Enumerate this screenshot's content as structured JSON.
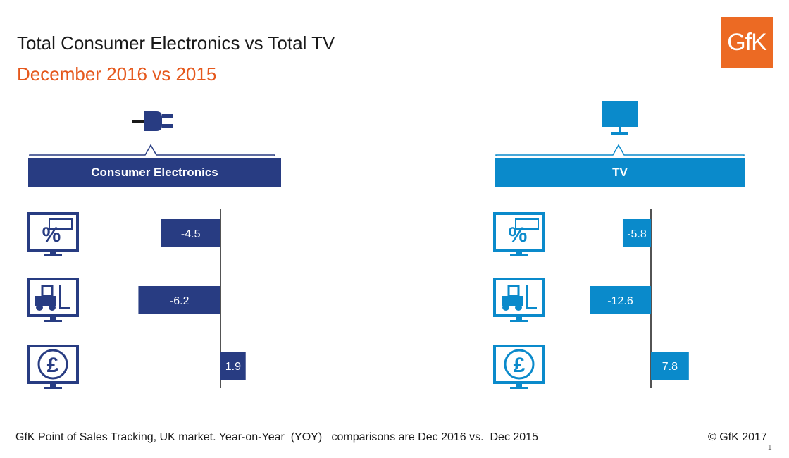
{
  "title": "Total Consumer Electronics vs Total TV",
  "subtitle": "December 2016 vs 2015",
  "logo_text": "GfK",
  "colors": {
    "ce": "#283c82",
    "tv": "#0a8acb",
    "accent": "#e5581c",
    "logo": "#ec6a23"
  },
  "panels": {
    "ce": {
      "header": "Consumer Electronics",
      "icon": "plug-icon"
    },
    "tv": {
      "header": "TV",
      "icon": "tv-monitor-icon"
    }
  },
  "row_icons": [
    "price-discount-monitor-icon",
    "forklift-volume-monitor-icon",
    "pound-value-monitor-icon"
  ],
  "chart_data": [
    {
      "type": "bar",
      "title": "Consumer Electronics",
      "values": [
        -4.5,
        -6.2,
        1.9
      ],
      "value_labels": [
        "-4.5",
        "-6.2",
        "1.9"
      ]
    },
    {
      "type": "bar",
      "title": "TV",
      "values": [
        -5.8,
        -12.6,
        7.8
      ],
      "value_labels": [
        "-5.8",
        "-12.6",
        "7.8"
      ]
    }
  ],
  "footer": {
    "source": "GfK Point of Sales Tracking, UK market. Year-on-Year  (YOY)   comparisons are Dec 2016 vs.  Dec 2015",
    "copyright": "© GfK 2017",
    "page": "1"
  }
}
